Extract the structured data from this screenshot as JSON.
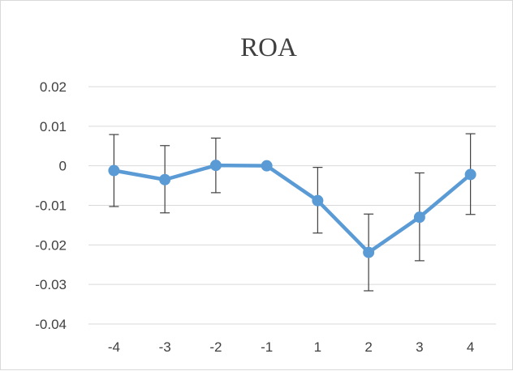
{
  "chart_data": {
    "type": "line",
    "title": "ROA",
    "categories": [
      "-4",
      "-3",
      "-2",
      "-1",
      "1",
      "2",
      "3",
      "4"
    ],
    "series": [
      {
        "values": [
          -0.0012,
          -0.0035,
          0.0001,
          0.0,
          -0.0088,
          -0.0219,
          -0.013,
          -0.0022
        ],
        "error_upper": [
          0.0079,
          0.0051,
          0.007,
          0.0,
          -0.0004,
          -0.0122,
          -0.0018,
          0.0081
        ],
        "error_lower": [
          -0.0103,
          -0.0119,
          -0.0068,
          0.0,
          -0.017,
          -0.0316,
          -0.024,
          -0.0123
        ],
        "color": "#5b9bd5"
      }
    ],
    "ylim": [
      -0.04,
      0.02
    ],
    "yticks": [
      0.02,
      0.01,
      0,
      -0.01,
      -0.02,
      -0.03,
      -0.04
    ],
    "ytick_labels": [
      "0.02",
      "0.01",
      "0",
      "-0.01",
      "-0.02",
      "-0.03",
      "-0.04"
    ],
    "grid": true,
    "legend": "none",
    "xlabel": "",
    "ylabel": ""
  }
}
